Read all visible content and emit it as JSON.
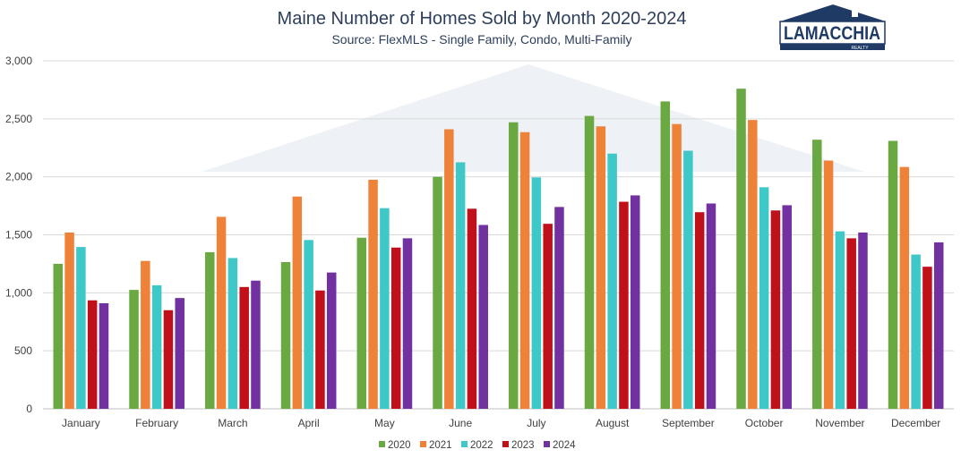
{
  "logo": {
    "name": "LAMACCHIA",
    "tagline": "REALTY",
    "color": "#1f3a64"
  },
  "chart_data": {
    "type": "bar",
    "title": "Maine Number of Homes Sold by Month 2020-2024",
    "subtitle": "Source: FlexMLS - Single Family, Condo, Multi-Family",
    "categories": [
      "January",
      "February",
      "March",
      "April",
      "May",
      "June",
      "July",
      "August",
      "September",
      "October",
      "November",
      "December"
    ],
    "ylim": [
      0,
      3000
    ],
    "yticks": [
      0,
      500,
      1000,
      1500,
      2000,
      2500,
      3000
    ],
    "ytick_labels": [
      "0",
      "500",
      "1,000",
      "1,500",
      "2,000",
      "2,500",
      "3,000"
    ],
    "grid": true,
    "legend_position": "bottom",
    "series": [
      {
        "name": "2020",
        "color": "#6aa842",
        "values": [
          1250,
          1025,
          1350,
          1265,
          1475,
          2000,
          2470,
          2525,
          2650,
          2760,
          2320,
          2310
        ]
      },
      {
        "name": "2021",
        "color": "#ee8239",
        "values": [
          1520,
          1275,
          1655,
          1830,
          1975,
          2410,
          2385,
          2435,
          2455,
          2490,
          2140,
          2085
        ]
      },
      {
        "name": "2022",
        "color": "#3ec8c7",
        "values": [
          1395,
          1065,
          1300,
          1455,
          1730,
          2125,
          1995,
          2200,
          2225,
          1910,
          1530,
          1330
        ]
      },
      {
        "name": "2023",
        "color": "#c0101a",
        "values": [
          935,
          850,
          1050,
          1020,
          1390,
          1725,
          1595,
          1785,
          1695,
          1710,
          1470,
          1225
        ]
      },
      {
        "name": "2024",
        "color": "#7131a0",
        "values": [
          910,
          955,
          1105,
          1175,
          1470,
          1585,
          1740,
          1840,
          1770,
          1755,
          1520,
          1435
        ]
      }
    ]
  }
}
